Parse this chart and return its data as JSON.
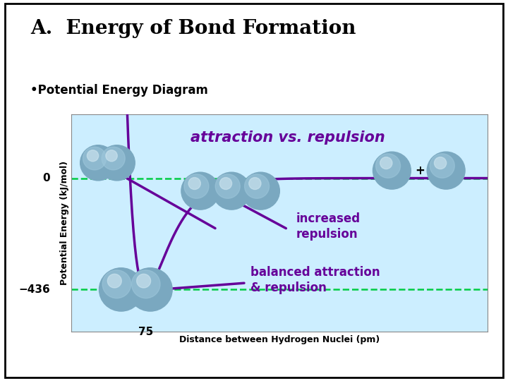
{
  "title": "A.  Energy of Bond Formation",
  "subtitle": "•Potential Energy Diagram",
  "xlabel": "Distance between Hydrogen Nuclei (pm)",
  "ylabel": "Potential Energy (kJ/mol)",
  "bg_color": "#cceeff",
  "outer_bg": "#ffffff",
  "zero_line_color": "#00cc44",
  "minus436_line_color": "#00cc44",
  "curve_color": "#660099",
  "annotation_color": "#660099",
  "annotation1": "attraction vs. repulsion",
  "annotation2": "increased\nrepulsion",
  "annotation3": "balanced attraction\n& repulsion",
  "label_75pm": "75 pm",
  "label_75": "75",
  "label_0": "0",
  "label_neg436": "−436",
  "atom_base": "#7aa8c0",
  "atom_mid": "#9fc8dc",
  "atom_highlight": "#cce4ef",
  "x_min": 0,
  "x_max": 10,
  "y_min": -600,
  "y_max": 250
}
